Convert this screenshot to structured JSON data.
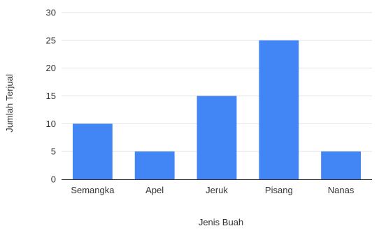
{
  "chart_data": {
    "type": "bar",
    "title": "",
    "xlabel": "Jenis Buah",
    "ylabel": "Jumlah Terjual",
    "categories": [
      "Semangka",
      "Apel",
      "Jeruk",
      "Pisang",
      "Nanas"
    ],
    "values": [
      10,
      5,
      15,
      25,
      5
    ],
    "ylim": [
      0,
      30
    ],
    "yticks": [
      "0",
      "5",
      "10",
      "15",
      "20",
      "25",
      "30"
    ],
    "grid": true,
    "legend": "none",
    "bar_color": "#4285f4"
  }
}
